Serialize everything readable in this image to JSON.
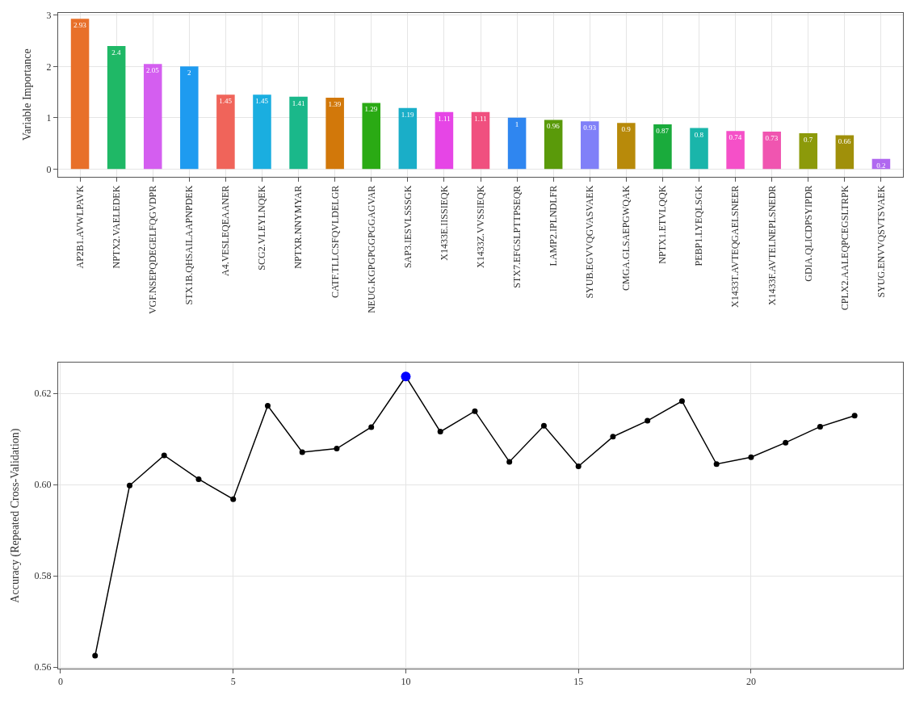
{
  "chart_data": [
    {
      "type": "bar",
      "ylabel": "Variable Importance",
      "categories": [
        "AP2B1.AVWLPAVK",
        "NPTX2.VAELEDEK",
        "VGF.NSEPQDEGELFQGVDPR",
        "STX1B.QHSAILAAPNPDEK",
        "A4.VESLEQEAANER",
        "SCG2.VLEYLNQEK",
        "NPTXR.NNYMYAR",
        "CATF.TLLCSFQVLDELGR",
        "NEUG.KGPGPGGPGGAGVAR",
        "SAP3.IESVLSSSGK",
        "X1433E.IISSIEQK",
        "X1433Z.VVSSIEQK",
        "STX7.EFGSLPTTPSEQR",
        "LAMP2.IPLNDLFR",
        "SYUB.EGVVQGVASVAEK",
        "CMGA.GLSAEPGWQAK",
        "NPTX1.ETVLQQK",
        "PEBP1.LYEQLSGK",
        "X1433T.AVTEQGAELSNEER",
        "X1433F.AVTELNEPLSNEDR",
        "GDIA.QLICDPSYIPDR",
        "CPLX2.AALEQPCEGSLTRPK",
        "SYUG.ENVVQSVTSVAEK"
      ],
      "values": [
        2.93,
        2.4,
        2.05,
        2,
        1.45,
        1.45,
        1.41,
        1.39,
        1.29,
        1.19,
        1.11,
        1.11,
        1,
        0.96,
        0.93,
        0.9,
        0.87,
        0.8,
        0.74,
        0.73,
        0.7,
        0.66,
        0.2
      ],
      "colors": [
        "#e8702a",
        "#1fb866",
        "#d45ef0",
        "#1e9bf0",
        "#f0645a",
        "#1aaee0",
        "#1ab88a",
        "#d2780a",
        "#2aaa14",
        "#1aaec8",
        "#e645e6",
        "#f0507f",
        "#2f86f0",
        "#5a9a0a",
        "#8080f8",
        "#b88a0a",
        "#1aab3c",
        "#1ab5aa",
        "#f550c8",
        "#f055b0",
        "#8c9a0a",
        "#a0900a",
        "#b068f0"
      ],
      "ylim": [
        -0.15,
        3.05
      ],
      "yticks": [
        0,
        1,
        2,
        3
      ],
      "data_labels": true,
      "grid": true
    },
    {
      "type": "line",
      "ylabel": "Accuracy (Repeated Cross-Validation)",
      "marker": "circle",
      "grid": true,
      "xlim": [
        -0.07,
        24.4
      ],
      "xticks": [
        0,
        5,
        10,
        15,
        20
      ],
      "ylim": [
        0.5597,
        0.6267
      ],
      "yticks": [
        {
          "value": 0.56,
          "label": "0.56"
        },
        {
          "value": 0.58,
          "label": "0.58"
        },
        {
          "value": 0.6,
          "label": "0.60"
        },
        {
          "value": 0.62,
          "label": "0.62"
        }
      ],
      "series": [
        {
          "color": "#000000",
          "x": [
            1,
            2,
            3,
            4,
            5,
            6,
            7,
            8,
            9,
            10,
            11,
            12,
            13,
            14,
            15,
            16,
            17,
            18,
            19,
            20,
            21,
            22,
            23
          ],
          "values": [
            0.5625,
            0.5998,
            0.6064,
            0.6012,
            0.5968,
            0.6173,
            0.6071,
            0.6079,
            0.6126,
            0.6237,
            0.6116,
            0.6161,
            0.605,
            0.6129,
            0.604,
            0.6105,
            0.614,
            0.6183,
            0.6045,
            0.606,
            0.6092,
            0.6127,
            0.6151
          ]
        },
        {
          "type": "scatter",
          "color": "#0000ff",
          "x": [
            10
          ],
          "values": [
            0.6237
          ]
        }
      ]
    }
  ]
}
